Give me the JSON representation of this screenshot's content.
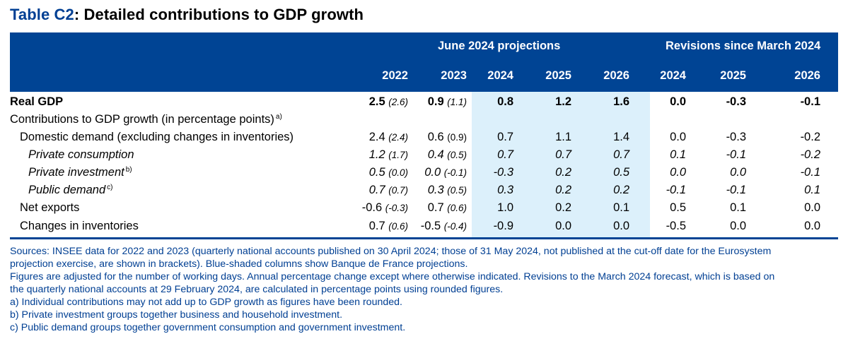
{
  "title": {
    "prefix": "Table C2",
    "rest": ": Detailed contributions to GDP growth"
  },
  "header": {
    "group_projections": "June 2024 projections",
    "group_revisions": "Revisions since March 2024",
    "years": [
      "2022",
      "2023",
      "2024",
      "2025",
      "2026",
      "2024",
      "2025",
      "2026"
    ]
  },
  "rows": [
    {
      "label": "Real GDP",
      "sup": "",
      "style": "bold",
      "v2022": "2.5",
      "b2022": "(2.6)",
      "v2023": "0.9",
      "b2023": "(1.1)",
      "p2024": "0.8",
      "p2025": "1.2",
      "p2026": "1.6",
      "r2024": "0.0",
      "r2025": "-0.3",
      "r2026": "-0.1"
    },
    {
      "label": "Contributions to GDP growth (in percentage points)",
      "sup": "a)",
      "style": "normal",
      "v2022": "",
      "b2022": "",
      "v2023": "",
      "b2023": "",
      "p2024": "",
      "p2025": "",
      "p2026": "",
      "r2024": "",
      "r2025": "",
      "r2026": ""
    },
    {
      "label": "Domestic demand (excluding changes in inventories)",
      "sup": "",
      "style": "normal",
      "v2022": "2.4",
      "b2022": "(2.4)",
      "v2023": "0.6",
      "b2023": "(0.9)",
      "p2024": "0.7",
      "p2025": "1.1",
      "p2026": "1.4",
      "r2024": "0.0",
      "r2025": "-0.3",
      "r2026": "-0.2"
    },
    {
      "label": "Private consumption",
      "sup": "",
      "style": "italic",
      "v2022": "1.2",
      "b2022": "(1.7)",
      "v2023": "0.4",
      "b2023": "(0.5)",
      "p2024": "0.7",
      "p2025": "0.7",
      "p2026": "0.7",
      "r2024": "0.1",
      "r2025": "-0.1",
      "r2026": "-0.2"
    },
    {
      "label": "Private investment",
      "sup": "b)",
      "style": "italic",
      "v2022": "0.5",
      "b2022": "(0.0)",
      "v2023": "0.0",
      "b2023": "(-0.1)",
      "p2024": "-0.3",
      "p2025": "0.2",
      "p2026": "0.5",
      "r2024": "0.0",
      "r2025": "0.0",
      "r2026": "-0.1"
    },
    {
      "label": "Public demand",
      "sup": "c)",
      "style": "italic",
      "v2022": "0.7",
      "b2022": "(0.7)",
      "v2023": "0.3",
      "b2023": "(0.5)",
      "p2024": "0.3",
      "p2025": "0.2",
      "p2026": "0.2",
      "r2024": "-0.1",
      "r2025": "-0.1",
      "r2026": "0.1"
    },
    {
      "label": "Net exports",
      "sup": "",
      "style": "normal",
      "v2022": "-0.6",
      "b2022": "(-0.3)",
      "v2023": "0.7",
      "b2023": "(0.6)",
      "p2024": "1.0",
      "p2025": "0.2",
      "p2026": "0.1",
      "r2024": "0.5",
      "r2025": "0.1",
      "r2026": "0.0"
    },
    {
      "label": "Changes in inventories",
      "sup": "",
      "style": "normal",
      "v2022": "0.7",
      "b2022": "(0.6)",
      "v2023": "-0.5",
      "b2023": "(-0.4)",
      "p2024": "-0.9",
      "p2025": "0.0",
      "p2026": "0.0",
      "r2024": "-0.5",
      "r2025": "0.0",
      "r2026": "0.0"
    }
  ],
  "notes": [
    "Sources: INSEE data for 2022 and 2023 (quarterly national accounts published on 30 April 2024; those of 31 May 2024, not published at the cut-off date for the Eurosystem",
    "projection exercise, are shown in brackets). Blue-shaded columns show Banque de France projections.",
    "Figures are adjusted for the number of working days. Annual percentage change except where otherwise indicated. Revisions to the March 2024 forecast, which is based on",
    "the quarterly national accounts at 29 February 2024, are calculated in percentage points using rounded figures.",
    "a)  Individual contributions may not add up to GDP growth as figures have been rounded.",
    "b)  Private investment groups together business and household investment.",
    "c)  Public demand groups together government consumption and government investment."
  ]
}
